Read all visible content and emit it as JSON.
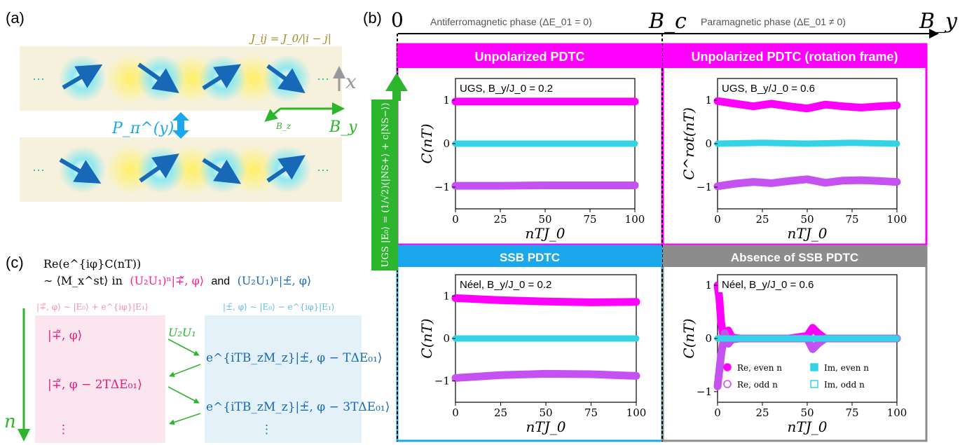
{
  "panel_a": {
    "label": "(a)",
    "coupling": "J_ij = J_0/|i − j|",
    "dots": "···",
    "axis_x": "x",
    "parity_label": "P_π^(y)",
    "field_bz": "B_z",
    "field_by": "B_y"
  },
  "panel_b": {
    "label": "(b)",
    "origin": "0",
    "critical": "B_c",
    "axis_by": "B_y",
    "phase_left": "Antiferromagnetic phase (ΔE_01 = 0)",
    "phase_right": "Paramagnetic phase (ΔE_01 ≠ 0)",
    "vertical_label": "UGS |E₀⟩ = (1/√2)(|NS+⟩ + c|NS−⟩)",
    "headers": [
      "Unpolarized PDTC",
      "Unpolarized PDTC (rotation frame)",
      "SSB PDTC",
      "Absence of SSB PDTC"
    ],
    "colors": {
      "magenta": "#ff00ff",
      "blue": "#1aa7ec",
      "gray": "#8c8c8c",
      "green": "#2db52d",
      "cyan": "#33d4e6",
      "violet": "#c552f0"
    }
  },
  "chart_data": [
    {
      "type": "scatter",
      "title": "UGS, B_y/J_0 = 0.2",
      "xlabel": "nTJ_0",
      "ylabel": "C(nT)",
      "xlim": [
        0,
        100
      ],
      "ylim": [
        -1.5,
        1.5
      ],
      "xticks": [
        "0",
        "25",
        "50",
        "75",
        "100"
      ],
      "yticks": [
        "1",
        "0",
        "−1"
      ],
      "series": [
        {
          "name": "Re, even n",
          "x": [
            0,
            25,
            50,
            75,
            100
          ],
          "values": [
            0.97,
            0.97,
            0.97,
            0.97,
            0.97
          ]
        },
        {
          "name": "Im, even n",
          "x": [
            0,
            25,
            50,
            75,
            100
          ],
          "values": [
            0,
            0,
            0,
            0,
            0
          ]
        },
        {
          "name": "Re, odd n",
          "x": [
            0,
            25,
            50,
            75,
            100
          ],
          "values": [
            -0.97,
            -0.97,
            -0.96,
            -0.96,
            -0.96
          ]
        }
      ]
    },
    {
      "type": "scatter",
      "title": "UGS, B_y/J_0 = 0.6",
      "xlabel": "nTJ_0",
      "ylabel": "C^rot(nT)",
      "xlim": [
        0,
        100
      ],
      "ylim": [
        -1.5,
        1.5
      ],
      "xticks": [
        "0",
        "25",
        "50",
        "75",
        "100"
      ],
      "yticks": [
        "1",
        "0",
        "−1"
      ],
      "series": [
        {
          "name": "Re, even n",
          "x": [
            0,
            10,
            20,
            30,
            40,
            50,
            60,
            70,
            80,
            90,
            100
          ],
          "values": [
            0.98,
            0.92,
            0.86,
            0.92,
            0.86,
            0.81,
            0.9,
            0.86,
            0.83,
            0.86,
            0.88
          ]
        },
        {
          "name": "Im, even n",
          "x": [
            0,
            25,
            50,
            75,
            100
          ],
          "values": [
            0,
            0.02,
            0,
            0.02,
            0
          ]
        },
        {
          "name": "Re, odd n",
          "x": [
            0,
            10,
            20,
            30,
            40,
            50,
            60,
            70,
            80,
            90,
            100
          ],
          "values": [
            -0.98,
            -0.92,
            -0.88,
            -0.91,
            -0.86,
            -0.82,
            -0.9,
            -0.85,
            -0.84,
            -0.86,
            -0.88
          ]
        }
      ]
    },
    {
      "type": "scatter",
      "title": "Néel, B_y/J_0 = 0.2",
      "xlabel": "nTJ_0",
      "ylabel": "C(nT)",
      "xlim": [
        0,
        100
      ],
      "ylim": [
        -1.5,
        1.5
      ],
      "xticks": [
        "0",
        "25",
        "50",
        "75",
        "100"
      ],
      "yticks": [
        "1",
        "0",
        "−1"
      ],
      "series": [
        {
          "name": "Re, even n",
          "x": [
            0,
            25,
            50,
            75,
            100
          ],
          "values": [
            0.95,
            0.9,
            0.87,
            0.85,
            0.86
          ]
        },
        {
          "name": "Im, even n",
          "x": [
            0,
            25,
            50,
            75,
            100
          ],
          "values": [
            0,
            0,
            0,
            0,
            0
          ]
        },
        {
          "name": "Re, odd n",
          "x": [
            0,
            25,
            50,
            75,
            100
          ],
          "values": [
            -0.93,
            -0.86,
            -0.83,
            -0.84,
            -0.88
          ]
        }
      ]
    },
    {
      "type": "scatter",
      "title": "Néel, B_y/J_0 = 0.6",
      "xlabel": "nTJ_0",
      "ylabel": "C(nT)",
      "xlim": [
        0,
        100
      ],
      "ylim": [
        -1.2,
        1.2
      ],
      "xticks": [
        "0",
        "25",
        "50",
        "75",
        "100"
      ],
      "yticks": [
        "1",
        "0",
        "−1"
      ],
      "legend": [
        "Re, even n",
        "Re, odd n",
        "Im, even n",
        "Im, odd n"
      ],
      "series": [
        {
          "name": "Re, even n",
          "x": [
            0,
            1,
            2,
            4,
            6,
            8,
            12,
            20,
            40,
            50,
            53,
            56,
            60,
            80,
            100
          ],
          "values": [
            1,
            0.75,
            0.3,
            -0.1,
            0.15,
            0.02,
            0,
            0,
            0,
            0.05,
            0.2,
            0.1,
            0,
            0,
            0
          ]
        },
        {
          "name": "Re, odd n",
          "x": [
            0,
            1,
            2,
            4,
            6,
            8,
            12,
            20,
            40,
            50,
            53,
            56,
            60,
            80,
            100
          ],
          "values": [
            -0.9,
            -0.6,
            -0.3,
            0.1,
            -0.1,
            -0.02,
            0,
            0,
            0,
            0,
            -0.2,
            -0.1,
            0,
            0,
            0
          ]
        },
        {
          "name": "Im, even n",
          "x": [
            0,
            25,
            50,
            75,
            100
          ],
          "values": [
            0,
            0,
            0,
            0,
            0
          ]
        },
        {
          "name": "Im, odd n",
          "x": [
            0,
            25,
            50,
            75,
            100
          ],
          "values": [
            0,
            0,
            0,
            0,
            0
          ]
        }
      ]
    }
  ],
  "panel_c": {
    "label": "(c)",
    "line1": "Re(e^{iφ}C(nT))",
    "line2_pre": "∼ ⟨M_x^st⟩ in",
    "line2_mid1": "(U₂U₁)ⁿ|∓̃, φ⟩",
    "line2_and": "and",
    "line2_mid2": "(U₂U₁)ⁿ|±̃, φ⟩",
    "left_def": "|∓̃, φ⟩ ∼ |E₀⟩ + e^{iφ}|E₁⟩",
    "right_def": "|±̃, φ⟩ ∼ |E₀⟩ − e^{iφ}|E₁⟩",
    "left_states": [
      "|∓̃, φ⟩",
      "|∓̃, φ − 2TΔE₀₁⟩",
      "⋮"
    ],
    "right_states": [
      "e^{iTB_zM_z}|±̃, φ − TΔE₀₁⟩",
      "e^{iTB_zM_z}|±̃, φ − 3TΔE₀₁⟩",
      "⋮"
    ],
    "evolution": "U₂U₁",
    "step": "n"
  }
}
